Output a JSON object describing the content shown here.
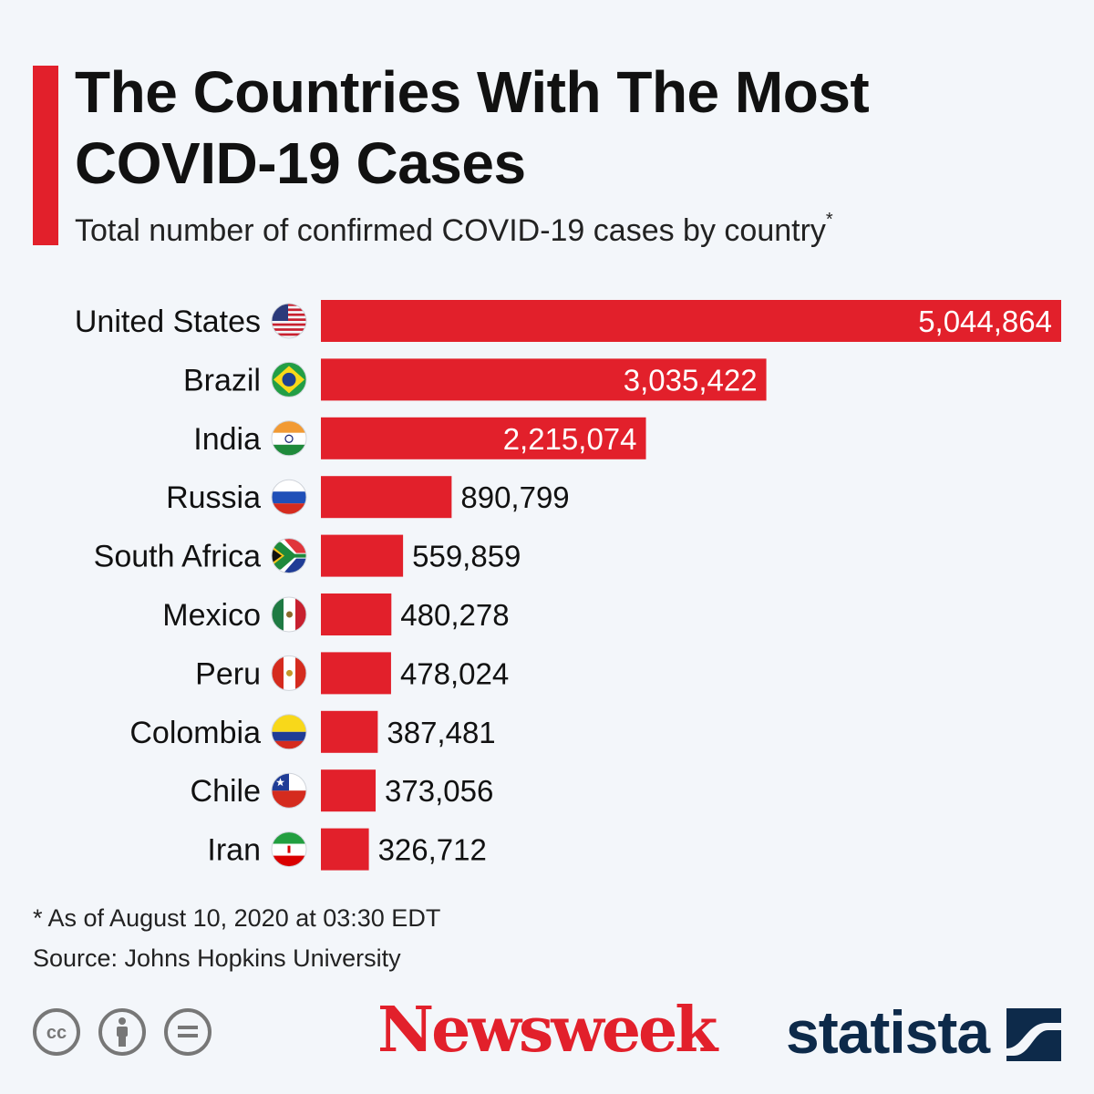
{
  "title": "The Countries With The Most COVID-19 Cases",
  "subtitle": "Total number of confirmed COVID-19 cases by country",
  "subtitle_marker": "*",
  "note": "* As of August 10, 2020 at 03:30 EDT",
  "source": "Source: Johns Hopkins University",
  "brand_left": "Newsweek",
  "brand_right": "statista",
  "colors": {
    "accent": "#e2202b",
    "navy": "#0d2a4a",
    "background": "#f3f6fa"
  },
  "license_icons": [
    "cc-icon",
    "attribution-icon",
    "no-derivatives-icon"
  ],
  "chart_data": {
    "type": "bar",
    "orientation": "horizontal",
    "categories": [
      "United States",
      "Brazil",
      "India",
      "Russia",
      "South Africa",
      "Mexico",
      "Peru",
      "Colombia",
      "Chile",
      "Iran"
    ],
    "values": [
      5044864,
      3035422,
      2215074,
      890799,
      559859,
      480278,
      478024,
      387481,
      373056,
      326712
    ],
    "value_labels": [
      "5,044,864",
      "3,035,422",
      "2,215,074",
      "890,799",
      "559,859",
      "480,278",
      "478,024",
      "387,481",
      "373,056",
      "326,712"
    ],
    "flags": [
      "us-flag-icon",
      "brazil-flag-icon",
      "india-flag-icon",
      "russia-flag-icon",
      "south-africa-flag-icon",
      "mexico-flag-icon",
      "peru-flag-icon",
      "colombia-flag-icon",
      "chile-flag-icon",
      "iran-flag-icon"
    ],
    "xlim": [
      0,
      5044864
    ],
    "bar_color": "#e2202b",
    "grid": false,
    "legend": "none"
  }
}
